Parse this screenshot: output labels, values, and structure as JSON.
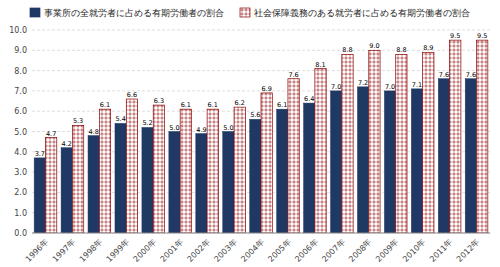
{
  "chart_data": {
    "type": "bar",
    "categories": [
      "1996年",
      "1997年",
      "1998年",
      "1999年",
      "2000年",
      "2001年",
      "2002年",
      "2003年",
      "2004年",
      "2005年",
      "2006年",
      "2007年",
      "2008年",
      "2009年",
      "2010年",
      "2011年",
      "2012年"
    ],
    "series": [
      {
        "name": "事業所の全就労者に占める有期労働者の割合",
        "color": "#1f3864",
        "values": [
          3.7,
          4.2,
          4.8,
          5.4,
          5.2,
          5.0,
          4.9,
          5.0,
          5.6,
          6.1,
          6.4,
          7.0,
          7.2,
          7.0,
          7.1,
          7.6,
          7.6
        ],
        "value_labels": [
          "3.7",
          "4.2",
          "4.8",
          "5.4",
          "5.2",
          "5.0",
          "4.9",
          "5.0",
          "5.6",
          "6.1",
          "6.4",
          "7.0",
          "7.2",
          "7.0",
          "7.1",
          "7.6",
          "7.6"
        ]
      },
      {
        "name": "社会保障義務のある就労者に占める有期労働者の割合",
        "color": "#8b0000",
        "values": [
          4.7,
          5.3,
          6.1,
          6.6,
          6.3,
          6.1,
          6.1,
          6.2,
          6.9,
          7.6,
          8.1,
          8.8,
          9.0,
          8.8,
          8.9,
          9.5,
          9.5
        ],
        "value_labels": [
          "4.7",
          "5.3",
          "6.1",
          "6.6",
          "6.3",
          "6.1",
          "6.1",
          "6.2",
          "6.9",
          "7.6",
          "8.1",
          "8.8",
          "9.0",
          "8.8",
          "8.9",
          "9.5",
          "9.5"
        ]
      }
    ],
    "ylim": [
      0.0,
      10.0
    ],
    "yticks": [
      {
        "value": 0.0,
        "label": "0.0"
      },
      {
        "value": 1.0,
        "label": "1.0"
      },
      {
        "value": 2.0,
        "label": "2.0"
      },
      {
        "value": 3.0,
        "label": "3.0"
      },
      {
        "value": 4.0,
        "label": "4.0"
      },
      {
        "value": 5.0,
        "label": "5.0"
      },
      {
        "value": 6.0,
        "label": "6.0"
      },
      {
        "value": 7.0,
        "label": "7.0"
      },
      {
        "value": 8.0,
        "label": "8.0"
      },
      {
        "value": 9.0,
        "label": "9.0"
      },
      {
        "value": 10.0,
        "label": "10.0"
      }
    ],
    "grid": true,
    "legend": "top",
    "data_labels": true
  }
}
